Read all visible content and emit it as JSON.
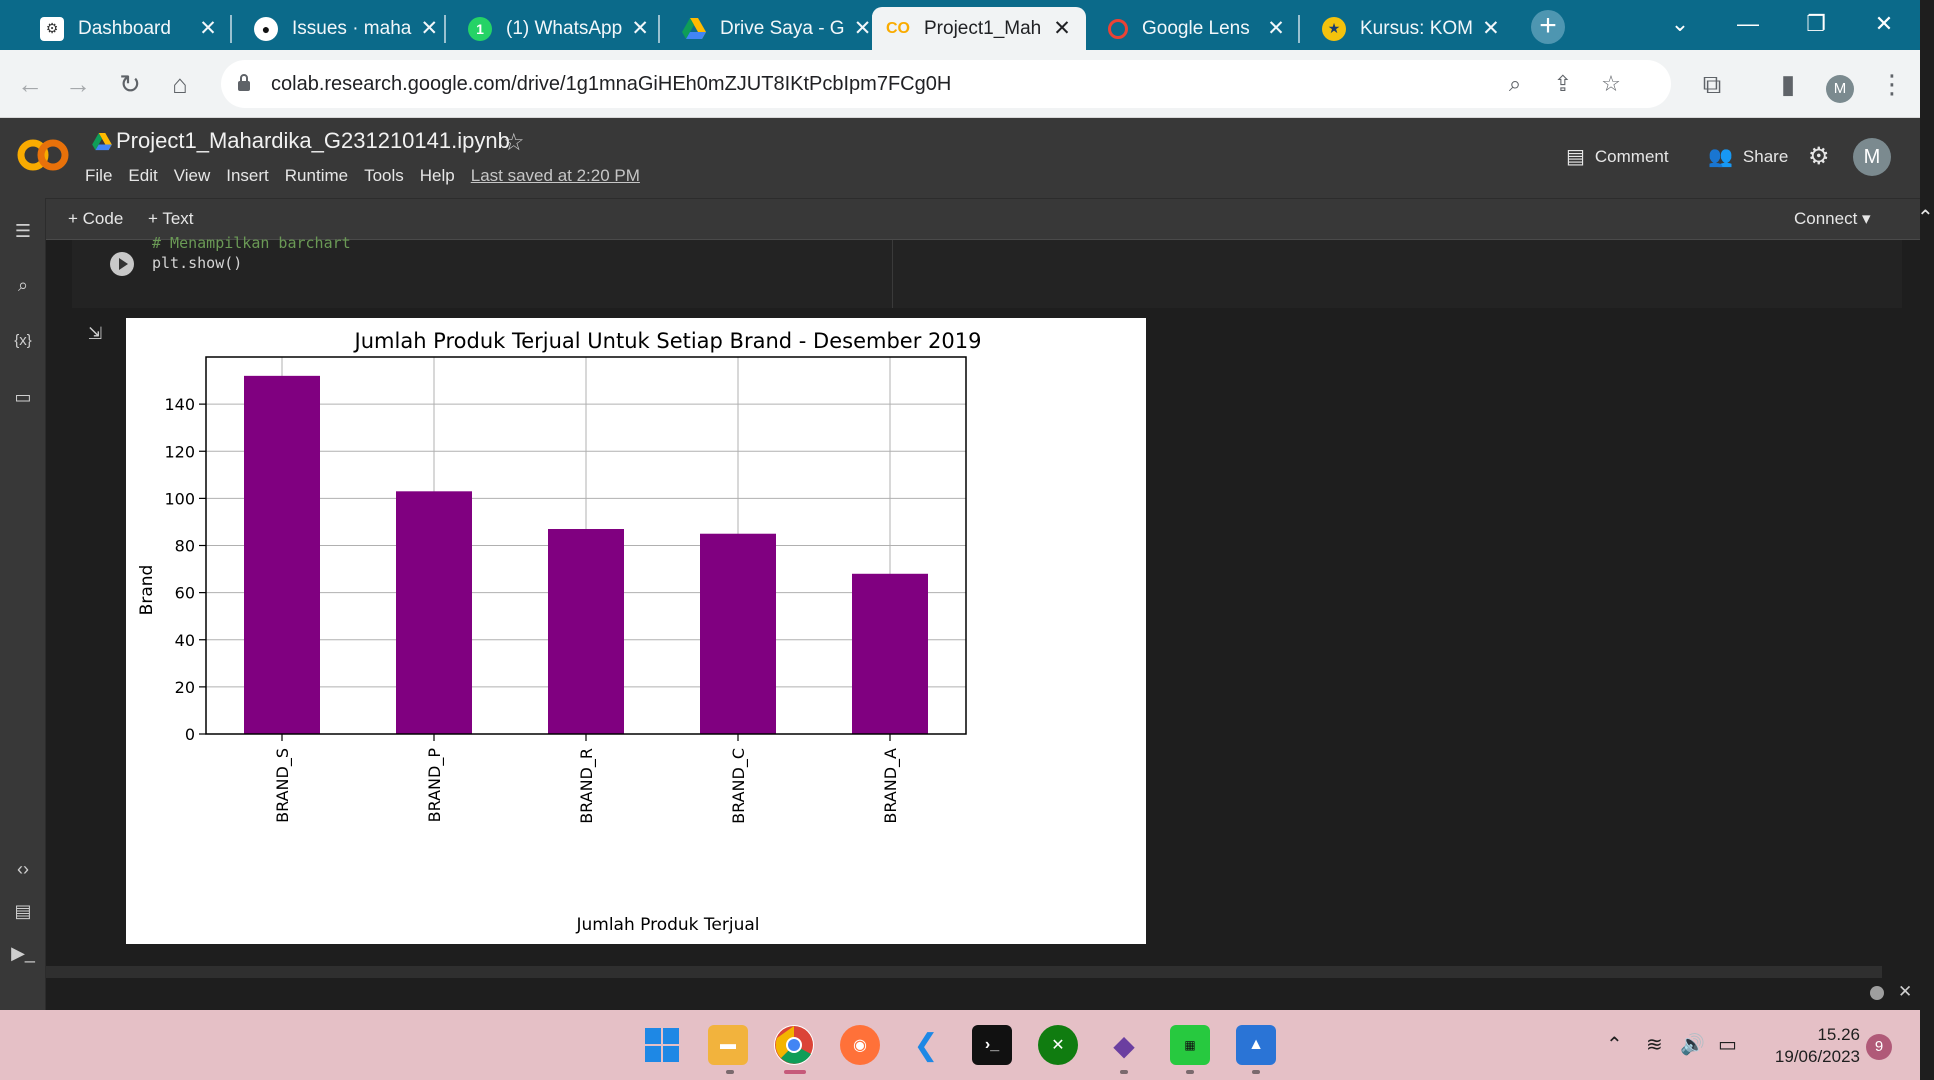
{
  "browser": {
    "tabs": [
      {
        "title": "Dashboard",
        "favicon": "gear-icon"
      },
      {
        "title": "Issues · maha",
        "favicon": "github-icon"
      },
      {
        "title": "(1) WhatsApp",
        "favicon": "whatsapp-icon"
      },
      {
        "title": "Drive Saya - G",
        "favicon": "drive-icon"
      },
      {
        "title": "Project1_Mah",
        "favicon": "colab-icon",
        "active": true
      },
      {
        "title": "Google Lens",
        "favicon": "lens-icon"
      },
      {
        "title": "Kursus: KOM",
        "favicon": "university-icon"
      }
    ],
    "url": "colab.research.google.com/drive/1g1mnaGiHEh0mZJUT8IKtPcbIpm7FCg0H",
    "profile_initial": "M"
  },
  "colab": {
    "notebook_title": "Project1_Mahardika_G231210141.ipynb",
    "menu": [
      "File",
      "Edit",
      "View",
      "Insert",
      "Runtime",
      "Tools",
      "Help"
    ],
    "last_saved": "Last saved at 2:20 PM",
    "comment_label": "Comment",
    "share_label": "Share",
    "avatar_initial": "M",
    "add_code_label": "+ Code",
    "add_text_label": "+ Text",
    "connect_label": "Connect",
    "code_comment": "# Menampilkan barchart",
    "code_line": "plt.show()"
  },
  "chart_data": {
    "type": "bar",
    "title": "Jumlah Produk Terjual Untuk Setiap Brand - Desember 2019",
    "xlabel": "Jumlah Produk Terjual",
    "ylabel": "Brand",
    "categories": [
      "BRAND_S",
      "BRAND_P",
      "BRAND_R",
      "BRAND_C",
      "BRAND_A"
    ],
    "values": [
      152,
      103,
      87,
      85,
      68
    ],
    "ylim": [
      0,
      160
    ],
    "yticks": [
      0,
      20,
      40,
      60,
      80,
      100,
      120,
      140
    ],
    "bar_color": "#800080",
    "grid": true
  },
  "taskbar": {
    "time": "15.26",
    "date": "19/06/2023",
    "notification_count": "9"
  }
}
